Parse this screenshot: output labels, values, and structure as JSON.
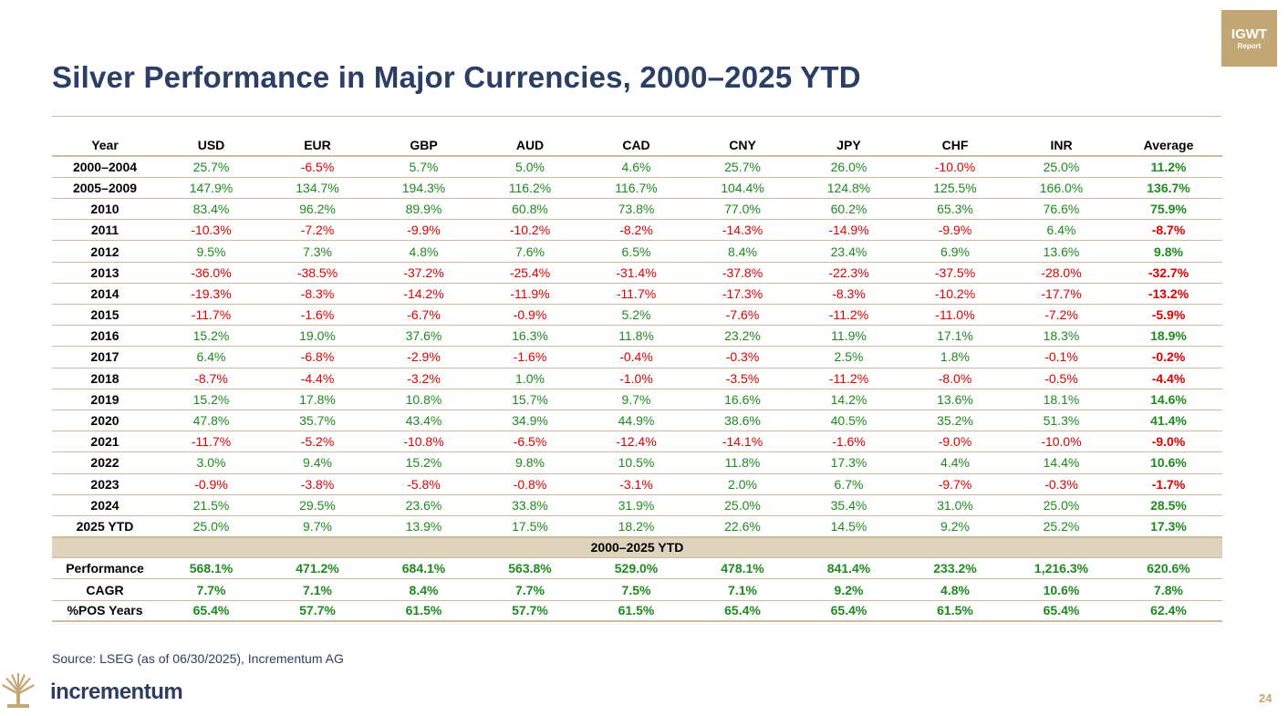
{
  "title": "Silver Performance in Major Currencies, 2000–2025 YTD",
  "badge": {
    "line1": "IGWT",
    "line2": "Report"
  },
  "colors": {
    "title": "#2c3e63",
    "gold": "#c3a775",
    "positive": "#1f8a1f",
    "negative": "#e00000",
    "section_bg": "#ded3bd"
  },
  "table": {
    "headers": [
      "Year",
      "USD",
      "EUR",
      "GBP",
      "AUD",
      "CAD",
      "CNY",
      "JPY",
      "CHF",
      "INR",
      "Average"
    ],
    "rows": [
      [
        "2000–2004",
        "25.7%",
        "-6.5%",
        "5.7%",
        "5.0%",
        "4.6%",
        "25.7%",
        "26.0%",
        "-10.0%",
        "25.0%",
        "11.2%"
      ],
      [
        "2005–2009",
        "147.9%",
        "134.7%",
        "194.3%",
        "116.2%",
        "116.7%",
        "104.4%",
        "124.8%",
        "125.5%",
        "166.0%",
        "136.7%"
      ],
      [
        "2010",
        "83.4%",
        "96.2%",
        "89.9%",
        "60.8%",
        "73.8%",
        "77.0%",
        "60.2%",
        "65.3%",
        "76.6%",
        "75.9%"
      ],
      [
        "2011",
        "-10.3%",
        "-7.2%",
        "-9.9%",
        "-10.2%",
        "-8.2%",
        "-14.3%",
        "-14.9%",
        "-9.9%",
        "6.4%",
        "-8.7%"
      ],
      [
        "2012",
        "9.5%",
        "7.3%",
        "4.8%",
        "7.6%",
        "6.5%",
        "8.4%",
        "23.4%",
        "6.9%",
        "13.6%",
        "9.8%"
      ],
      [
        "2013",
        "-36.0%",
        "-38.5%",
        "-37.2%",
        "-25.4%",
        "-31.4%",
        "-37.8%",
        "-22.3%",
        "-37.5%",
        "-28.0%",
        "-32.7%"
      ],
      [
        "2014",
        "-19.3%",
        "-8.3%",
        "-14.2%",
        "-11.9%",
        "-11.7%",
        "-17.3%",
        "-8.3%",
        "-10.2%",
        "-17.7%",
        "-13.2%"
      ],
      [
        "2015",
        "-11.7%",
        "-1.6%",
        "-6.7%",
        "-0.9%",
        "5.2%",
        "-7.6%",
        "-11.2%",
        "-11.0%",
        "-7.2%",
        "-5.9%"
      ],
      [
        "2016",
        "15.2%",
        "19.0%",
        "37.6%",
        "16.3%",
        "11.8%",
        "23.2%",
        "11.9%",
        "17.1%",
        "18.3%",
        "18.9%"
      ],
      [
        "2017",
        "6.4%",
        "-6.8%",
        "-2.9%",
        "-1.6%",
        "-0.4%",
        "-0.3%",
        "2.5%",
        "1.8%",
        "-0.1%",
        "-0.2%"
      ],
      [
        "2018",
        "-8.7%",
        "-4.4%",
        "-3.2%",
        "1.0%",
        "-1.0%",
        "-3.5%",
        "-11.2%",
        "-8.0%",
        "-0.5%",
        "-4.4%"
      ],
      [
        "2019",
        "15.2%",
        "17.8%",
        "10.8%",
        "15.7%",
        "9.7%",
        "16.6%",
        "14.2%",
        "13.6%",
        "18.1%",
        "14.6%"
      ],
      [
        "2020",
        "47.8%",
        "35.7%",
        "43.4%",
        "34.9%",
        "44.9%",
        "38.6%",
        "40.5%",
        "35.2%",
        "51.3%",
        "41.4%"
      ],
      [
        "2021",
        "-11.7%",
        "-5.2%",
        "-10.8%",
        "-6.5%",
        "-12.4%",
        "-14.1%",
        "-1.6%",
        "-9.0%",
        "-10.0%",
        "-9.0%"
      ],
      [
        "2022",
        "3.0%",
        "9.4%",
        "15.2%",
        "9.8%",
        "10.5%",
        "11.8%",
        "17.3%",
        "4.4%",
        "14.4%",
        "10.6%"
      ],
      [
        "2023",
        "-0.9%",
        "-3.8%",
        "-5.8%",
        "-0.8%",
        "-3.1%",
        "2.0%",
        "6.7%",
        "-9.7%",
        "-0.3%",
        "-1.7%"
      ],
      [
        "2024",
        "21.5%",
        "29.5%",
        "23.6%",
        "33.8%",
        "31.9%",
        "25.0%",
        "35.4%",
        "31.0%",
        "25.0%",
        "28.5%"
      ],
      [
        "2025 YTD",
        "25.0%",
        "9.7%",
        "13.9%",
        "17.5%",
        "18.2%",
        "22.6%",
        "14.5%",
        "9.2%",
        "25.2%",
        "17.3%"
      ]
    ],
    "section_label": "2000–2025 YTD",
    "summary": [
      [
        "Performance",
        "568.1%",
        "471.2%",
        "684.1%",
        "563.8%",
        "529.0%",
        "478.1%",
        "841.4%",
        "233.2%",
        "1,216.3%",
        "620.6%"
      ],
      [
        "CAGR",
        "7.7%",
        "7.1%",
        "8.4%",
        "7.7%",
        "7.5%",
        "7.1%",
        "9.2%",
        "4.8%",
        "10.6%",
        "7.8%"
      ],
      [
        "%POS Years",
        "65.4%",
        "57.7%",
        "61.5%",
        "57.7%",
        "61.5%",
        "65.4%",
        "65.4%",
        "61.5%",
        "65.4%",
        "62.4%"
      ]
    ]
  },
  "source": "Source: LSEG (as of 06/30/2025), Incrementum AG",
  "logo_text": "incrementum",
  "page_number": "24",
  "icons": {
    "logo": "incrementum-tree-icon"
  }
}
